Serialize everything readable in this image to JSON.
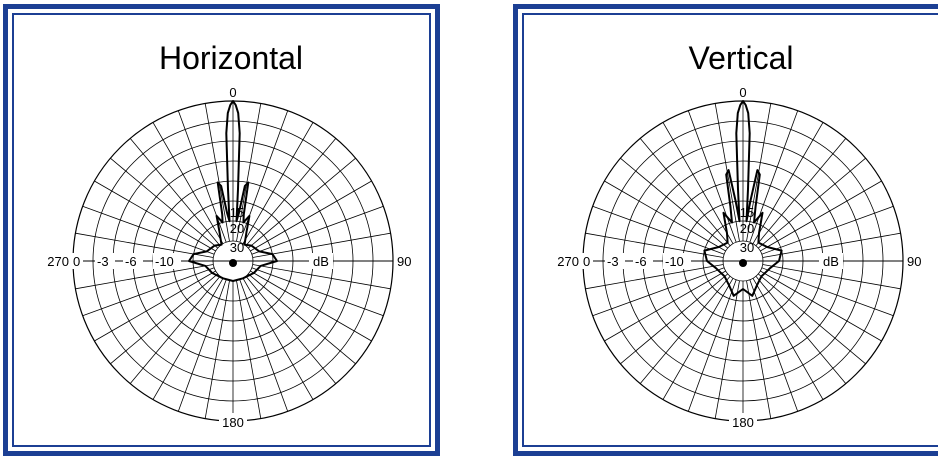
{
  "colors": {
    "frame": "#1c3f94",
    "ink": "#000000"
  },
  "chart_data": [
    {
      "type": "polar",
      "title": "Horizontal",
      "unit_label": "dB",
      "angle_labels": {
        "top": "0",
        "right": "90",
        "bottom": "180",
        "left": "270"
      },
      "scale_labels_left": [
        "0",
        "-3",
        "-6",
        "-10"
      ],
      "scale_labels_center": [
        "15",
        "20",
        "30"
      ],
      "grid": {
        "rings": 8,
        "spokes": 36
      },
      "pattern_db": [
        [
          0,
          0
        ],
        [
          1,
          -1
        ],
        [
          2,
          -3
        ],
        [
          3,
          -8
        ],
        [
          4,
          -22
        ],
        [
          5,
          -30
        ],
        [
          7,
          -28
        ],
        [
          9,
          -21
        ],
        [
          11,
          -20
        ],
        [
          13,
          -28
        ],
        [
          15,
          -30
        ],
        [
          20,
          -28
        ],
        [
          25,
          -32
        ],
        [
          35,
          -35
        ],
        [
          50,
          -34
        ],
        [
          70,
          -33
        ],
        [
          80,
          -30
        ],
        [
          90,
          -29
        ],
        [
          100,
          -33
        ],
        [
          120,
          -34
        ],
        [
          150,
          -35
        ],
        [
          180,
          -35
        ],
        [
          210,
          -35
        ],
        [
          240,
          -34
        ],
        [
          260,
          -33
        ],
        [
          270,
          -29
        ],
        [
          280,
          -30
        ],
        [
          290,
          -33
        ],
        [
          310,
          -34
        ],
        [
          325,
          -35
        ],
        [
          335,
          -32
        ],
        [
          340,
          -28
        ],
        [
          345,
          -30
        ],
        [
          347,
          -28
        ],
        [
          349,
          -20
        ],
        [
          351,
          -21
        ],
        [
          353,
          -28
        ],
        [
          355,
          -30
        ],
        [
          356,
          -22
        ],
        [
          357,
          -8
        ],
        [
          358,
          -3
        ],
        [
          359,
          -1
        ],
        [
          360,
          0
        ]
      ]
    },
    {
      "type": "polar",
      "title": "Vertical",
      "unit_label": "dB",
      "angle_labels": {
        "top": "0",
        "right": "90",
        "bottom": "180",
        "left": "270"
      },
      "scale_labels_left": [
        "0",
        "-3",
        "-6",
        "-10"
      ],
      "scale_labels_center": [
        "15",
        "20",
        "30"
      ],
      "grid": {
        "rings": 8,
        "spokes": 36
      },
      "pattern_db": [
        [
          0,
          0
        ],
        [
          1,
          -1
        ],
        [
          2,
          -3
        ],
        [
          3,
          -8
        ],
        [
          4,
          -22
        ],
        [
          5,
          -30
        ],
        [
          7,
          -25
        ],
        [
          9,
          -17
        ],
        [
          11,
          -18
        ],
        [
          13,
          -26
        ],
        [
          16,
          -30
        ],
        [
          22,
          -27
        ],
        [
          30,
          -32
        ],
        [
          40,
          -34
        ],
        [
          60,
          -33
        ],
        [
          75,
          -30
        ],
        [
          90,
          -31
        ],
        [
          105,
          -33
        ],
        [
          130,
          -34
        ],
        [
          150,
          -33
        ],
        [
          165,
          -31
        ],
        [
          180,
          -33
        ],
        [
          195,
          -31
        ],
        [
          210,
          -33
        ],
        [
          230,
          -34
        ],
        [
          255,
          -33
        ],
        [
          270,
          -31
        ],
        [
          285,
          -30
        ],
        [
          300,
          -33
        ],
        [
          320,
          -34
        ],
        [
          330,
          -32
        ],
        [
          338,
          -27
        ],
        [
          344,
          -30
        ],
        [
          347,
          -26
        ],
        [
          349,
          -18
        ],
        [
          351,
          -17
        ],
        [
          353,
          -25
        ],
        [
          355,
          -30
        ],
        [
          356,
          -22
        ],
        [
          357,
          -8
        ],
        [
          358,
          -3
        ],
        [
          359,
          -1
        ],
        [
          360,
          0
        ]
      ]
    }
  ]
}
